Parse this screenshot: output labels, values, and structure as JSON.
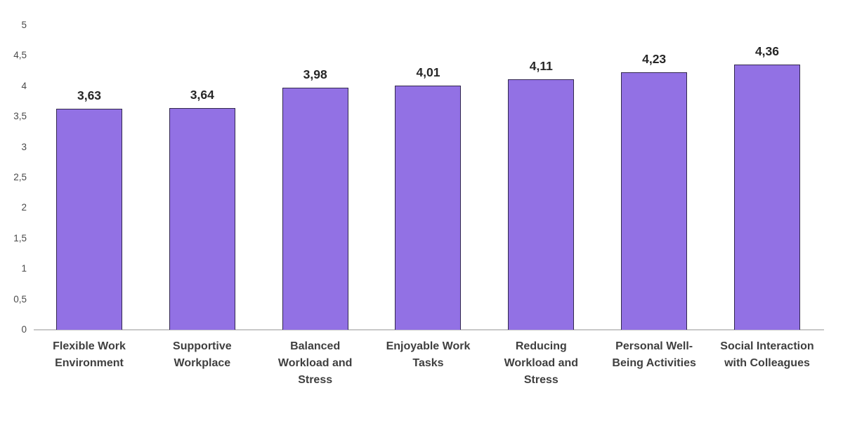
{
  "chart_data": {
    "type": "bar",
    "title": "",
    "xlabel": "",
    "ylabel": "",
    "grid": false,
    "legend": null,
    "decimal_separator": "comma",
    "categories": [
      "Flexible Work Environment",
      "Supportive Workplace",
      "Balanced Workload and Stress",
      "Enjoyable Work Tasks",
      "Reducing Workload and Stress",
      "Personal Well-Being Activities",
      "Social Interaction with Colleagues"
    ],
    "values": [
      3.63,
      3.64,
      3.98,
      4.01,
      4.11,
      4.23,
      4.36
    ],
    "value_labels": [
      "3,63",
      "3,64",
      "3,98",
      "4,01",
      "4,11",
      "4,23",
      "4,36"
    ],
    "y_axis": {
      "min": 0,
      "max": 5,
      "step": 0.5,
      "tick_labels": [
        "0",
        "0,5",
        "1",
        "1,5",
        "2",
        "2,5",
        "3",
        "3,5",
        "4",
        "4,5",
        "5"
      ]
    },
    "colors": {
      "bar_fill": "#9271E4",
      "bar_border": "#32284E",
      "axis_line": "#C9C9C9",
      "value_label": "#262626",
      "category_label": "#3F3F3F",
      "tick_label": "#4A4A4A",
      "background": "#FFFFFF"
    }
  }
}
